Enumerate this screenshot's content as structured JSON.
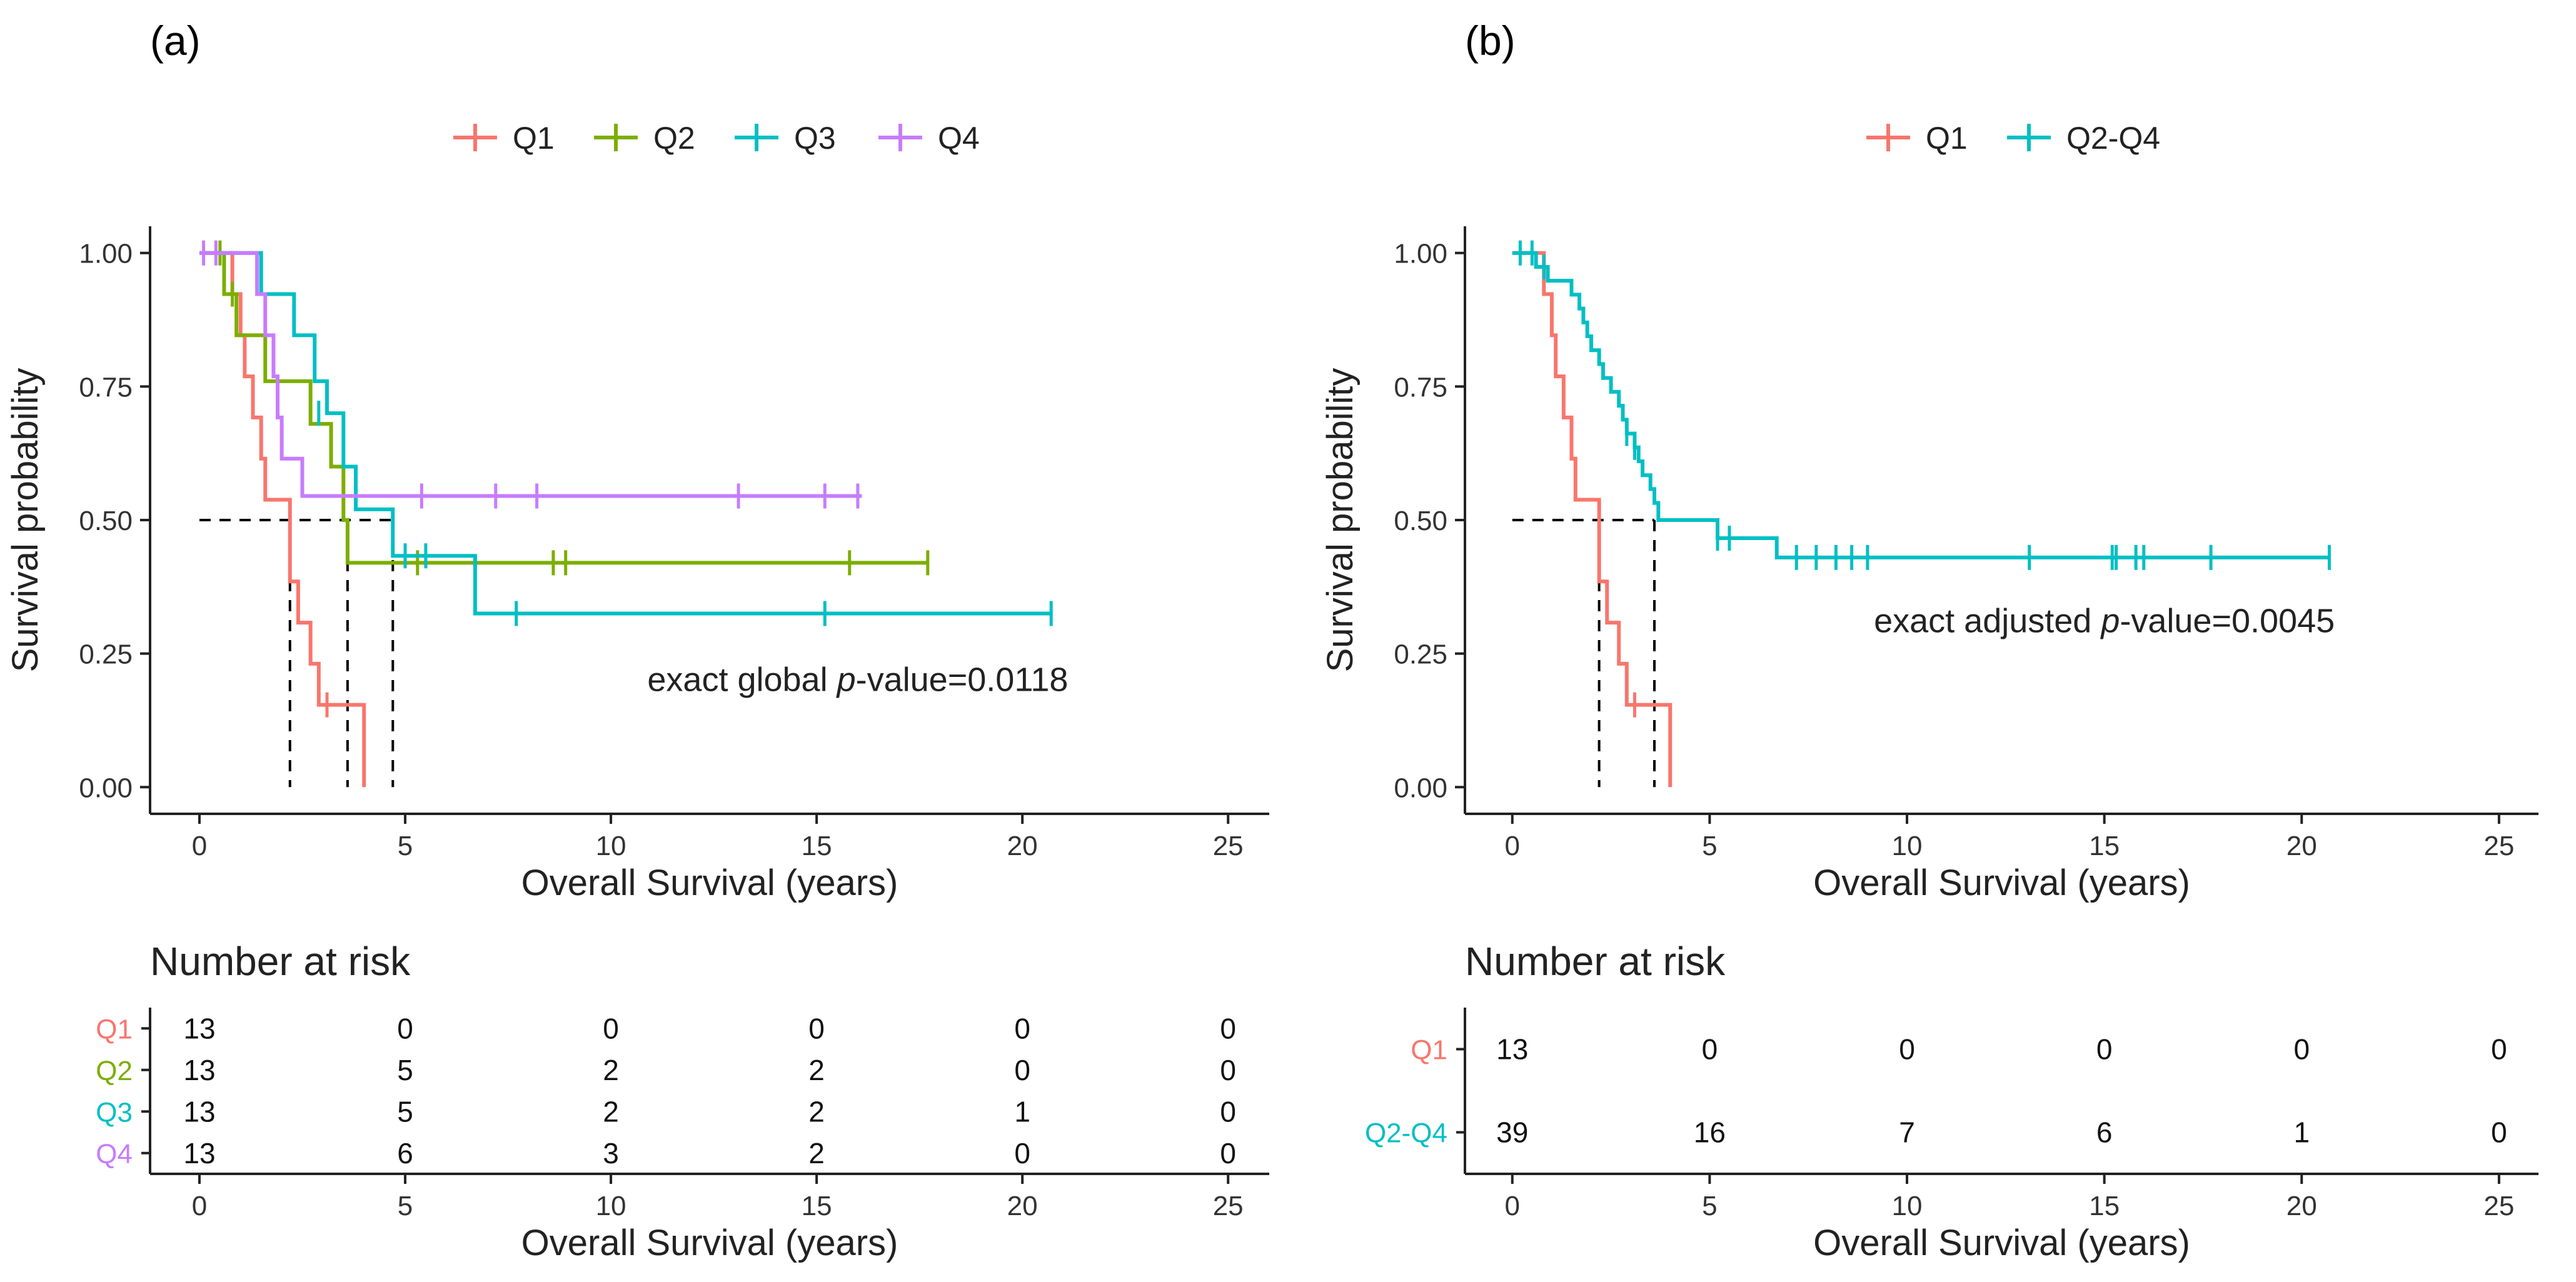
{
  "colors": {
    "Q1": "#F8766D",
    "Q2": "#7CAE00",
    "Q3": "#00BFC4",
    "Q4": "#C77CFF",
    "Q2-Q4": "#00BFC4",
    "axis": "#222222",
    "text": "#222222"
  },
  "chart_data": [
    {
      "panel_label": "(a)",
      "type": "line",
      "subtype": "kaplan-meier",
      "legend": [
        "Q1",
        "Q2",
        "Q3",
        "Q4"
      ],
      "legend_position": "top",
      "xlabel": "Overall Survival (years)",
      "ylabel": "Survival probability",
      "xlim": [
        -1.2,
        26
      ],
      "ylim": [
        -0.05,
        1.05
      ],
      "xticks": [
        0,
        5,
        10,
        15,
        20,
        25
      ],
      "yticks": [
        0.0,
        0.25,
        0.5,
        0.75,
        1.0
      ],
      "ytick_labels": [
        "0.00",
        "0.25",
        "0.50",
        "0.75",
        "1.00"
      ],
      "annotation": {
        "prefix": "exact global ",
        "italic": "p",
        "suffix": "-value=0.0118",
        "x": 16,
        "y": 0.18
      },
      "median_survival": {
        "y": 0.5,
        "x_values": [
          2.2,
          3.6,
          4.7
        ]
      },
      "series": [
        {
          "name": "Q1",
          "steps": [
            [
              0,
              1.0
            ],
            [
              0.8,
              0.923
            ],
            [
              1.0,
              0.846
            ],
            [
              1.1,
              0.769
            ],
            [
              1.3,
              0.692
            ],
            [
              1.5,
              0.615
            ],
            [
              1.6,
              0.538
            ],
            [
              2.2,
              0.385
            ],
            [
              2.4,
              0.308
            ],
            [
              2.7,
              0.231
            ],
            [
              2.9,
              0.154
            ],
            [
              4.0,
              0.0
            ]
          ],
          "end": 4.0,
          "censors": [
            [
              3.1,
              0.154
            ]
          ]
        },
        {
          "name": "Q2",
          "steps": [
            [
              0,
              1.0
            ],
            [
              0.6,
              0.923
            ],
            [
              0.9,
              0.846
            ],
            [
              1.6,
              0.76
            ],
            [
              2.7,
              0.68
            ],
            [
              3.2,
              0.6
            ],
            [
              3.5,
              0.5
            ],
            [
              3.6,
              0.42
            ]
          ],
          "end": 17.7,
          "censors": [
            [
              0.5,
              1.0
            ],
            [
              0.8,
              0.923
            ],
            [
              5.3,
              0.42
            ],
            [
              8.6,
              0.42
            ],
            [
              8.9,
              0.42
            ],
            [
              15.8,
              0.42
            ],
            [
              17.7,
              0.42
            ]
          ]
        },
        {
          "name": "Q3",
          "steps": [
            [
              0,
              1.0
            ],
            [
              1.5,
              0.923
            ],
            [
              2.3,
              0.846
            ],
            [
              2.8,
              0.76
            ],
            [
              3.1,
              0.7
            ],
            [
              3.5,
              0.6
            ],
            [
              3.8,
              0.52
            ],
            [
              4.7,
              0.433
            ],
            [
              6.7,
              0.325
            ]
          ],
          "end": 20.7,
          "censors": [
            [
              2.9,
              0.7
            ],
            [
              5.0,
              0.433
            ],
            [
              5.5,
              0.433
            ],
            [
              7.7,
              0.325
            ],
            [
              15.2,
              0.325
            ],
            [
              20.7,
              0.325
            ]
          ]
        },
        {
          "name": "Q4",
          "steps": [
            [
              0,
              1.0
            ],
            [
              1.4,
              0.923
            ],
            [
              1.6,
              0.846
            ],
            [
              1.8,
              0.769
            ],
            [
              1.9,
              0.692
            ],
            [
              2.0,
              0.615
            ],
            [
              2.5,
              0.545
            ]
          ],
          "end": 16.1,
          "censors": [
            [
              0.1,
              1.0
            ],
            [
              0.4,
              1.0
            ],
            [
              5.4,
              0.545
            ],
            [
              7.2,
              0.545
            ],
            [
              8.2,
              0.545
            ],
            [
              13.1,
              0.545
            ],
            [
              15.2,
              0.545
            ],
            [
              16.0,
              0.545
            ]
          ]
        }
      ],
      "risk_table": {
        "title": "Number at risk",
        "xlabel": "Overall Survival (years)",
        "times": [
          0,
          5,
          10,
          15,
          20,
          25
        ],
        "rows": [
          {
            "group": "Q1",
            "counts": [
              13,
              0,
              0,
              0,
              0,
              0
            ]
          },
          {
            "group": "Q2",
            "counts": [
              13,
              5,
              2,
              2,
              0,
              0
            ]
          },
          {
            "group": "Q3",
            "counts": [
              13,
              5,
              2,
              2,
              1,
              0
            ]
          },
          {
            "group": "Q4",
            "counts": [
              13,
              6,
              3,
              2,
              0,
              0
            ]
          }
        ]
      }
    },
    {
      "panel_label": "(b)",
      "type": "line",
      "subtype": "kaplan-meier",
      "legend": [
        "Q1",
        "Q2-Q4"
      ],
      "legend_position": "top",
      "xlabel": "Overall Survival (years)",
      "ylabel": "Survival probability",
      "xlim": [
        -1.2,
        26
      ],
      "ylim": [
        -0.05,
        1.05
      ],
      "xticks": [
        0,
        5,
        10,
        15,
        20,
        25
      ],
      "yticks": [
        0.0,
        0.25,
        0.5,
        0.75,
        1.0
      ],
      "ytick_labels": [
        "0.00",
        "0.25",
        "0.50",
        "0.75",
        "1.00"
      ],
      "annotation": {
        "prefix": "exact adjusted ",
        "italic": "p",
        "suffix": "-value=0.0045",
        "x": 15,
        "y": 0.29
      },
      "median_survival": {
        "y": 0.5,
        "x_values": [
          2.2,
          3.6
        ]
      },
      "series": [
        {
          "name": "Q1",
          "steps": [
            [
              0,
              1.0
            ],
            [
              0.8,
              0.923
            ],
            [
              1.0,
              0.846
            ],
            [
              1.1,
              0.769
            ],
            [
              1.3,
              0.692
            ],
            [
              1.5,
              0.615
            ],
            [
              1.6,
              0.538
            ],
            [
              2.2,
              0.385
            ],
            [
              2.4,
              0.308
            ],
            [
              2.7,
              0.231
            ],
            [
              2.9,
              0.154
            ],
            [
              4.0,
              0.0
            ]
          ],
          "end": 4.0,
          "censors": [
            [
              3.1,
              0.154
            ]
          ]
        },
        {
          "name": "Q2-Q4",
          "steps": [
            [
              0,
              1.0
            ],
            [
              0.6,
              0.974
            ],
            [
              0.9,
              0.948
            ],
            [
              1.5,
              0.922
            ],
            [
              1.7,
              0.896
            ],
            [
              1.8,
              0.87
            ],
            [
              1.9,
              0.844
            ],
            [
              2.0,
              0.818
            ],
            [
              2.2,
              0.792
            ],
            [
              2.3,
              0.766
            ],
            [
              2.5,
              0.74
            ],
            [
              2.7,
              0.714
            ],
            [
              2.8,
              0.688
            ],
            [
              2.9,
              0.662
            ],
            [
              3.1,
              0.636
            ],
            [
              3.2,
              0.61
            ],
            [
              3.3,
              0.584
            ],
            [
              3.5,
              0.558
            ],
            [
              3.6,
              0.532
            ],
            [
              3.7,
              0.5
            ],
            [
              5.2,
              0.466
            ],
            [
              6.7,
              0.43
            ]
          ],
          "end": 20.7,
          "censors": [
            [
              0.2,
              1.0
            ],
            [
              0.5,
              1.0
            ],
            [
              0.8,
              0.974
            ],
            [
              2.9,
              0.662
            ],
            [
              3.1,
              0.636
            ],
            [
              5.2,
              0.466
            ],
            [
              5.5,
              0.466
            ],
            [
              7.2,
              0.43
            ],
            [
              7.7,
              0.43
            ],
            [
              8.2,
              0.43
            ],
            [
              8.6,
              0.43
            ],
            [
              9.0,
              0.43
            ],
            [
              13.1,
              0.43
            ],
            [
              15.2,
              0.43
            ],
            [
              15.3,
              0.43
            ],
            [
              15.8,
              0.43
            ],
            [
              16.0,
              0.43
            ],
            [
              17.7,
              0.43
            ],
            [
              20.7,
              0.43
            ]
          ]
        }
      ],
      "risk_table": {
        "title": "Number at risk",
        "xlabel": "Overall Survival (years)",
        "times": [
          0,
          5,
          10,
          15,
          20,
          25
        ],
        "rows": [
          {
            "group": "Q1",
            "counts": [
              13,
              0,
              0,
              0,
              0,
              0
            ]
          },
          {
            "group": "Q2-Q4",
            "counts": [
              39,
              16,
              7,
              6,
              1,
              0
            ]
          }
        ]
      }
    }
  ]
}
